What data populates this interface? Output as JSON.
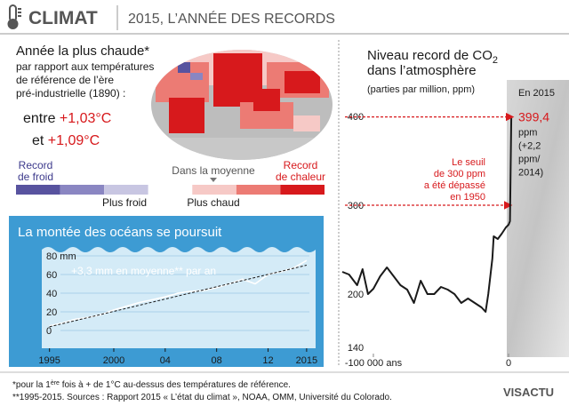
{
  "header": {
    "title": "CLIMAT",
    "subtitle": "2015, L’ANNÉE DES RECORDS"
  },
  "warmest": {
    "title": "Année la plus chaude*",
    "lines": [
      "par rapport aux températures",
      "de référence de l’ère",
      "pré-industrielle (1890) :"
    ],
    "range": [
      {
        "prefix": "entre",
        "value": "+1,03°C"
      },
      {
        "prefix": "et",
        "value": "+1,09°C"
      }
    ]
  },
  "legend": {
    "colors": [
      "#58539f",
      "#8a86c2",
      "#c8c6e2",
      "#ffffff",
      "#f6c9c6",
      "#ec7b74",
      "#d7191c"
    ],
    "record_cold": [
      "Record",
      "de froid"
    ],
    "colder": "Plus froid",
    "average": "Dans la moyenne",
    "warmer": "Plus chaud",
    "record_heat": [
      "Record",
      "de chaleur"
    ]
  },
  "chart_data": [
    {
      "type": "line",
      "title": "La montée des océans se poursuit",
      "annotation": "+3,3 mm en moyenne** par an",
      "x": [
        1995,
        1996,
        1997,
        1998,
        1999,
        2000,
        2001,
        2002,
        2003,
        2004,
        2005,
        2006,
        2007,
        2008,
        2009,
        2010,
        2011,
        2012,
        2013,
        2014,
        2015
      ],
      "series": [
        {
          "color": "#ffffff",
          "values": [
            5,
            8,
            12,
            14,
            17,
            22,
            26,
            30,
            33,
            36,
            40,
            42,
            43,
            46,
            50,
            55,
            50,
            60,
            63,
            67,
            75
          ]
        }
      ],
      "trend": {
        "x": [
          1995,
          2015
        ],
        "values": [
          4,
          70
        ],
        "color": "#1a1a1a"
      },
      "xlim": [
        1994.4,
        2015.7
      ],
      "ylim": [
        -19,
        89.5
      ],
      "xticks": [
        1995,
        2000,
        {
          "value": 2004,
          "label": "04"
        },
        {
          "value": 2008,
          "label": "08"
        },
        {
          "value": 2012,
          "label": "12"
        },
        2015
      ],
      "yticks": [
        0,
        20,
        40,
        60,
        {
          "value": 80,
          "label": "80 mm"
        }
      ],
      "grid": true
    },
    {
      "type": "line",
      "title": [
        "Niveau record de CO",
        "2",
        "dans l’atmosphère"
      ],
      "subtitle": "(parties par million, ppm)",
      "x": [
        -123000,
        -118000,
        -112000,
        -108000,
        -104000,
        -100000,
        -95000,
        -90000,
        -85000,
        -80000,
        -75000,
        -70000,
        -65000,
        -60000,
        -55000,
        -50000,
        -45000,
        -40000,
        -35000,
        -30000,
        -25000,
        -20000,
        -17000,
        -15000,
        -12000,
        -11000,
        -8000,
        -5000,
        -2000,
        0,
        1000,
        2015
      ],
      "series": [
        {
          "color": "#1a1a1a",
          "values": [
            225,
            222,
            210,
            228,
            200,
            206,
            220,
            230,
            220,
            210,
            205,
            190,
            215,
            200,
            200,
            208,
            205,
            200,
            190,
            195,
            190,
            185,
            180,
            200,
            240,
            265,
            262,
            268,
            275,
            278,
            282,
            399.4
          ],
          "value_labels": [
            null,
            null,
            null,
            null,
            null,
            null,
            null,
            null,
            null,
            null,
            null,
            null,
            null,
            null,
            null,
            null,
            null,
            null,
            null,
            null,
            null,
            null,
            null,
            null,
            null,
            null,
            null,
            null,
            null,
            null,
            null,
            "399,4"
          ]
        }
      ],
      "last_note": {
        "before": "En 2015",
        "after": [
          "ppm",
          "(+2,2",
          "ppm/",
          "2014)"
        ]
      },
      "threshold": {
        "value": 300,
        "lines": [
          "Le seuil",
          "de 300 ppm",
          "a été dépassé",
          "en 1950"
        ]
      },
      "xlim": [
        -123000,
        44700
      ],
      "ylim": [
        130,
        440
      ],
      "xticks": [
        {
          "value": -100000,
          "label": "-100 000 ans"
        },
        0
      ],
      "yticks": [
        140,
        200,
        300,
        400
      ]
    }
  ],
  "footnotes": {
    "line1": [
      "*pour la 1",
      "ère",
      " fois à + de 1°C au-dessus des températures de référence."
    ],
    "line2": "**1995-2015.  Sources : Rapport 2015 « L’état du climat », NOAA, OMM, Université du Colorado."
  },
  "logo": "VISACTU"
}
